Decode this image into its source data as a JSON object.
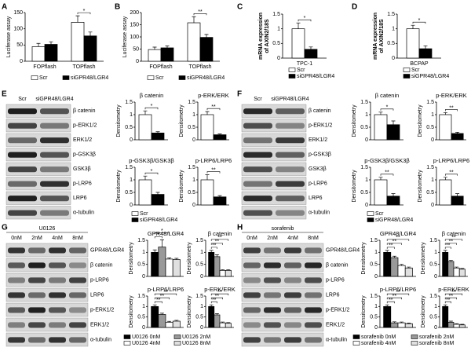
{
  "panels": [
    "A",
    "B",
    "C",
    "D",
    "E",
    "F",
    "G",
    "H"
  ],
  "blots": [
    {
      "header": [
        "Scr",
        "siGPR48/LGR4"
      ],
      "rows": [
        "β catenin",
        "p-ERK1/2",
        "ERK1/2",
        "p-GSK3β",
        "GSK3β",
        "p-LRP6",
        "LRP6",
        "α-tubulin"
      ]
    },
    {
      "header": [
        "Scr",
        "siGPR48/LGR4"
      ],
      "rows": [
        "β catenin",
        "p-ERK1/2",
        "ERK1/2",
        "p-GSK3β",
        "GSK3β",
        "p-LRP6",
        "LRP6",
        "α-tubulin"
      ]
    },
    {
      "title": "U0126",
      "header": [
        "0nM",
        "2nM",
        "4nM",
        "8nM"
      ],
      "rows": [
        "GPR48/LGR4",
        "β catenin",
        "p-LRP6",
        "LRP6",
        "p-ERK1/2",
        "ERK1/2",
        "α-tubulin"
      ]
    },
    {
      "title": "sorafenib",
      "header": [
        "0nM",
        "2nM",
        "4nM",
        "8nM"
      ],
      "rows": [
        "GPR48/LGR4",
        "β catenin",
        "p-LRP6",
        "LRP6",
        "p-ERK1/2",
        "ERK1/2",
        "α-tubulin"
      ]
    }
  ],
  "chart_data": [
    {
      "type": "bar",
      "ylabel": "Luciferase assay",
      "categories": [
        "FOPflash",
        "TOPflash"
      ],
      "ylim": [
        0,
        150
      ],
      "yticks": [
        0,
        50,
        100,
        150
      ],
      "annotations": [
        "*"
      ],
      "series": [
        {
          "name": "Scr",
          "color": "#ffffff",
          "values": [
            45,
            120
          ],
          "errors": [
            10,
            20
          ]
        },
        {
          "name": "siGPR48/LGR4",
          "color": "#000000",
          "values": [
            52,
            78
          ],
          "errors": [
            8,
            12
          ]
        }
      ]
    },
    {
      "type": "bar",
      "ylabel": "Luciferase assay",
      "categories": [
        "FOPflash",
        "TOPflash"
      ],
      "ylim": [
        0,
        200
      ],
      "yticks": [
        0,
        50,
        100,
        150,
        200
      ],
      "annotations": [
        "**"
      ],
      "series": [
        {
          "name": "Scr",
          "color": "#ffffff",
          "values": [
            48,
            158
          ],
          "errors": [
            10,
            25
          ]
        },
        {
          "name": "siGPR48/LGR4",
          "color": "#000000",
          "values": [
            55,
            98
          ],
          "errors": [
            8,
            12
          ]
        }
      ]
    },
    {
      "type": "bar",
      "ylabel": [
        "mRNA expression",
        "of AXIN2/18S"
      ],
      "categories": [
        "TPC-1"
      ],
      "ylim": [
        0,
        1.5
      ],
      "yticks": [
        0,
        0.5,
        1,
        1.5
      ],
      "annotations": [
        "*"
      ],
      "series": [
        {
          "name": "Scr",
          "color": "#ffffff",
          "values": [
            1.0
          ],
          "errors": [
            0.2
          ]
        },
        {
          "name": "siGPR48/LGR4",
          "color": "#000000",
          "values": [
            0.3
          ],
          "errors": [
            0.08
          ]
        }
      ]
    },
    {
      "type": "bar",
      "ylabel": [
        "mRNA expression",
        "of AXIN2/18S"
      ],
      "categories": [
        "BCPAP"
      ],
      "ylim": [
        0,
        1.5
      ],
      "yticks": [
        0,
        0.5,
        1,
        1.5
      ],
      "annotations": [
        "*"
      ],
      "series": [
        {
          "name": "Scr",
          "color": "#ffffff",
          "values": [
            1.0
          ],
          "errors": [
            0.12
          ]
        },
        {
          "name": "siGPR48/LGR4",
          "color": "#000000",
          "values": [
            0.32
          ],
          "errors": [
            0.1
          ]
        }
      ]
    },
    {
      "type": "bar",
      "title": "β catenin",
      "ylabel": "Densitometry",
      "ylim": [
        0,
        1.5
      ],
      "yticks": [
        0,
        0.5,
        1,
        1.5
      ],
      "annotations": [
        "*"
      ],
      "series": [
        {
          "color": "#ffffff",
          "values": [
            1.0
          ],
          "errors": [
            0.15
          ]
        },
        {
          "color": "#000000",
          "values": [
            0.27
          ],
          "errors": [
            0.05
          ]
        }
      ]
    },
    {
      "type": "bar",
      "title": "p-ERK/ERK",
      "ylabel": "Densitometry",
      "ylim": [
        0,
        1.5
      ],
      "yticks": [
        0,
        0.5,
        1,
        1.5
      ],
      "annotations": [
        "**"
      ],
      "series": [
        {
          "color": "#ffffff",
          "values": [
            1.0
          ],
          "errors": [
            0.12
          ]
        },
        {
          "color": "#000000",
          "values": [
            0.2
          ],
          "errors": [
            0.03
          ]
        }
      ]
    },
    {
      "type": "bar",
      "title": "p-GSK3β/GSK3β",
      "ylabel": "Densitometry",
      "ylim": [
        0,
        1.5
      ],
      "yticks": [
        0,
        0.5,
        1,
        1.5
      ],
      "annotations": [
        "*"
      ],
      "series": [
        {
          "name": "Scr",
          "color": "#ffffff",
          "values": [
            1.0
          ],
          "errors": [
            0.15
          ]
        },
        {
          "name": "siGPR48/LGR4",
          "color": "#000000",
          "values": [
            0.42
          ],
          "errors": [
            0.08
          ]
        }
      ]
    },
    {
      "type": "bar",
      "title": "p-LRP6/LRP6",
      "ylabel": "Densitometry",
      "ylim": [
        0,
        1.5
      ],
      "yticks": [
        0,
        0.5,
        1,
        1.5
      ],
      "annotations": [
        "**"
      ],
      "series": [
        {
          "color": "#ffffff",
          "values": [
            1.0
          ],
          "errors": [
            0.2
          ]
        },
        {
          "color": "#000000",
          "values": [
            0.32
          ],
          "errors": [
            0.05
          ]
        }
      ]
    },
    {
      "type": "bar",
      "title": "β catenin",
      "ylabel": "Densitometry",
      "ylim": [
        0,
        1.5
      ],
      "yticks": [
        0,
        0.5,
        1,
        1.5
      ],
      "annotations": [
        "*"
      ],
      "series": [
        {
          "color": "#ffffff",
          "values": [
            1.0
          ],
          "errors": [
            0.1
          ]
        },
        {
          "color": "#000000",
          "values": [
            0.6
          ],
          "errors": [
            0.15
          ]
        }
      ]
    },
    {
      "type": "bar",
      "title": "p-ERK/ERK",
      "ylabel": "Densitometry",
      "ylim": [
        0,
        1.5
      ],
      "yticks": [
        0,
        0.5,
        1,
        1.5
      ],
      "annotations": [
        "**"
      ],
      "series": [
        {
          "color": "#ffffff",
          "values": [
            1.0
          ],
          "errors": [
            0.08
          ]
        },
        {
          "color": "#000000",
          "values": [
            0.25
          ],
          "errors": [
            0.05
          ]
        }
      ]
    },
    {
      "type": "bar",
      "title": "p-GSK3β/GSK3β",
      "ylabel": "Densitometry",
      "ylim": [
        0,
        1.5
      ],
      "yticks": [
        0,
        0.5,
        1,
        1.5
      ],
      "annotations": [
        "**"
      ],
      "series": [
        {
          "name": "Scr",
          "color": "#ffffff",
          "values": [
            1.0
          ],
          "errors": [
            0.1
          ]
        },
        {
          "name": "siGPR48/LGR4",
          "color": "#000000",
          "values": [
            0.35
          ],
          "errors": [
            0.1
          ]
        }
      ]
    },
    {
      "type": "bar",
      "title": "p-LRP6/LRP6",
      "ylabel": "Densitometry",
      "ylim": [
        0,
        1.5
      ],
      "yticks": [
        0,
        0.5,
        1,
        1.5
      ],
      "annotations": [
        "**"
      ],
      "series": [
        {
          "color": "#ffffff",
          "values": [
            1.0
          ],
          "errors": [
            0.1
          ]
        },
        {
          "color": "#000000",
          "values": [
            0.35
          ],
          "errors": [
            0.1
          ]
        }
      ]
    },
    {
      "type": "bar",
      "title": "GPR48/LGR4",
      "ylabel": "Densitometry",
      "ylim": [
        0,
        1.5
      ],
      "yticks": [
        0,
        0.5,
        1,
        1.5
      ],
      "annotations": [
        "*",
        "*"
      ],
      "series": [
        {
          "color": "#000000",
          "values": [
            1.0
          ],
          "errors": [
            0.1
          ]
        },
        {
          "color": "#999999",
          "values": [
            1.22
          ],
          "errors": [
            0.3
          ]
        },
        {
          "color": "#ffffff",
          "values": [
            0.72
          ],
          "errors": [
            0.05
          ]
        },
        {
          "color": "#e0e0e0",
          "values": [
            0.7
          ],
          "errors": [
            0.05
          ]
        }
      ]
    },
    {
      "type": "bar",
      "title": "β catenin",
      "ylabel": "Densitometry",
      "ylim": [
        0,
        1.5
      ],
      "yticks": [
        0,
        0.5,
        1,
        1.5
      ],
      "annotations": [
        "**",
        "**",
        "**"
      ],
      "series": [
        {
          "color": "#000000",
          "values": [
            1.0
          ],
          "errors": [
            0.08
          ]
        },
        {
          "color": "#999999",
          "values": [
            0.82
          ],
          "errors": [
            0.08
          ]
        },
        {
          "color": "#ffffff",
          "values": [
            0.25
          ],
          "errors": [
            0.03
          ]
        },
        {
          "color": "#e0e0e0",
          "values": [
            0.25
          ],
          "errors": [
            0.03
          ]
        }
      ]
    },
    {
      "type": "bar",
      "title": "p-LRP6/LRP6",
      "ylabel": "Densitometry",
      "ylim": [
        0,
        1.5
      ],
      "yticks": [
        0,
        0.5,
        1,
        1.5
      ],
      "annotations": [
        "**",
        "**",
        "**"
      ],
      "series": [
        {
          "name": "U0126 0nM",
          "color": "#000000",
          "values": [
            1.0
          ],
          "errors": [
            0.08
          ]
        },
        {
          "name": "U0126 2nM",
          "color": "#999999",
          "values": [
            0.62
          ],
          "errors": [
            0.06
          ]
        },
        {
          "name": "U0126 4nM",
          "color": "#ffffff",
          "values": [
            0.25
          ],
          "errors": [
            0.04
          ]
        },
        {
          "name": "U0126 8nM",
          "color": "#e0e0e0",
          "values": [
            0.3
          ],
          "errors": [
            0.04
          ]
        }
      ]
    },
    {
      "type": "bar",
      "title": "p-ERK/ERK",
      "ylabel": "Densitometry",
      "ylim": [
        0,
        1.5
      ],
      "yticks": [
        0,
        0.5,
        1,
        1.5
      ],
      "annotations": [
        "**",
        "**",
        "**"
      ],
      "series": [
        {
          "color": "#000000",
          "values": [
            1.0
          ],
          "errors": [
            0.08
          ]
        },
        {
          "color": "#999999",
          "values": [
            0.6
          ],
          "errors": [
            0.06
          ]
        },
        {
          "color": "#ffffff",
          "values": [
            0.22
          ],
          "errors": [
            0.04
          ]
        },
        {
          "color": "#e0e0e0",
          "values": [
            0.2
          ],
          "errors": [
            0.03
          ]
        }
      ]
    },
    {
      "type": "bar",
      "title": "GPR48/LGR4",
      "ylabel": "Densitometry",
      "ylim": [
        0,
        1.5
      ],
      "yticks": [
        0,
        0.5,
        1,
        1.5
      ],
      "annotations": [
        "**",
        "**",
        "**"
      ],
      "series": [
        {
          "color": "#000000",
          "values": [
            1.0
          ],
          "errors": [
            0.08
          ]
        },
        {
          "color": "#999999",
          "values": [
            0.78
          ],
          "errors": [
            0.06
          ]
        },
        {
          "color": "#ffffff",
          "values": [
            0.45
          ],
          "errors": [
            0.05
          ]
        },
        {
          "color": "#e0e0e0",
          "values": [
            0.35
          ],
          "errors": [
            0.04
          ]
        }
      ]
    },
    {
      "type": "bar",
      "title": "β catenin",
      "ylabel": "Densitometry",
      "ylim": [
        0,
        1.5
      ],
      "yticks": [
        0,
        0.5,
        1,
        1.5
      ],
      "annotations": [
        "**",
        "**",
        "**"
      ],
      "series": [
        {
          "color": "#000000",
          "values": [
            1.0
          ],
          "errors": [
            0.08
          ]
        },
        {
          "color": "#999999",
          "values": [
            0.62
          ],
          "errors": [
            0.05
          ]
        },
        {
          "color": "#ffffff",
          "values": [
            0.35
          ],
          "errors": [
            0.04
          ]
        },
        {
          "color": "#e0e0e0",
          "values": [
            0.3
          ],
          "errors": [
            0.03
          ]
        }
      ]
    },
    {
      "type": "bar",
      "title": "p-LRP6/LRP6",
      "ylabel": "Densitometry",
      "ylim": [
        0,
        1.5
      ],
      "yticks": [
        0,
        0.5,
        1,
        1.5
      ],
      "annotations": [
        "**",
        "**",
        "**"
      ],
      "series": [
        {
          "name": "sorafenib 0nM",
          "color": "#000000",
          "values": [
            1.0
          ],
          "errors": [
            0.08
          ]
        },
        {
          "name": "sorafenib 2nM",
          "color": "#999999",
          "values": [
            0.22
          ],
          "errors": [
            0.05
          ]
        },
        {
          "name": "sorafenib 4nM",
          "color": "#ffffff",
          "values": [
            0.22
          ],
          "errors": [
            0.04
          ]
        },
        {
          "name": "sorafenib 8nM",
          "color": "#e0e0e0",
          "values": [
            0.18
          ],
          "errors": [
            0.03
          ]
        }
      ]
    },
    {
      "type": "bar",
      "title": "p-ERK/ERK",
      "ylabel": "Densitometry",
      "ylim": [
        0,
        1.5
      ],
      "yticks": [
        0,
        0.5,
        1,
        1.5
      ],
      "annotations": [
        "**",
        "**",
        "**"
      ],
      "series": [
        {
          "color": "#000000",
          "values": [
            1.0
          ],
          "errors": [
            0.08
          ]
        },
        {
          "color": "#999999",
          "values": [
            0.25
          ],
          "errors": [
            0.05
          ]
        },
        {
          "color": "#ffffff",
          "values": [
            0.15
          ],
          "errors": [
            0.03
          ]
        },
        {
          "color": "#e0e0e0",
          "values": [
            0.12
          ],
          "errors": [
            0.03
          ]
        }
      ]
    }
  ]
}
